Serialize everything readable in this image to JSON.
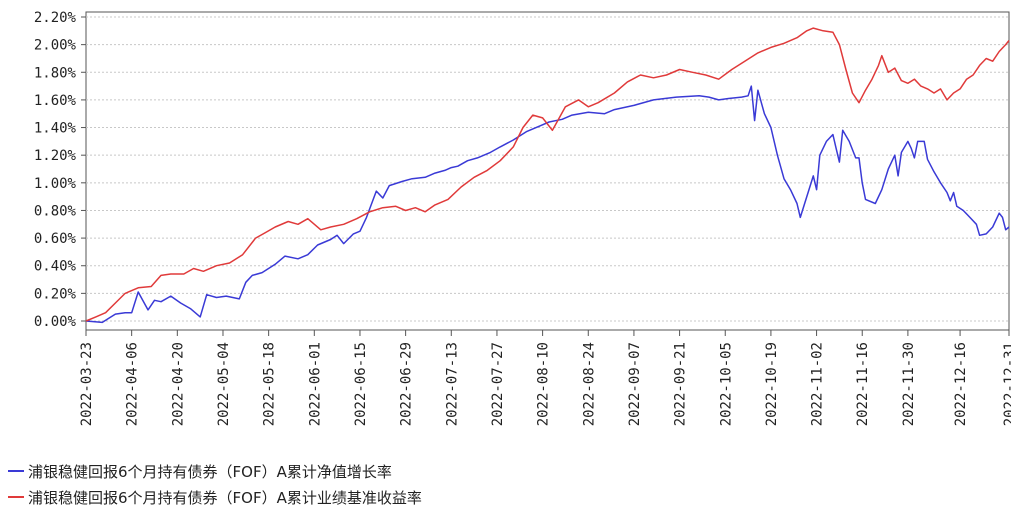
{
  "chart_data": {
    "type": "line",
    "ylim": [
      0,
      0.022
    ],
    "yticks": [
      "0.00%",
      "0.20%",
      "0.40%",
      "0.60%",
      "0.80%",
      "1.00%",
      "1.20%",
      "1.40%",
      "1.60%",
      "1.80%",
      "2.00%",
      "2.20%"
    ],
    "xticks": [
      "2022-03-23",
      "2022-04-06",
      "2022-04-20",
      "2022-05-04",
      "2022-05-18",
      "2022-06-01",
      "2022-06-15",
      "2022-06-29",
      "2022-07-13",
      "2022-07-27",
      "2022-08-10",
      "2022-08-24",
      "2022-09-07",
      "2022-09-21",
      "2022-10-05",
      "2022-10-19",
      "2022-11-02",
      "2022-11-16",
      "2022-11-30",
      "2022-12-16",
      "2022-12-31"
    ],
    "grid": true,
    "legend_position": "bottom-left",
    "series": [
      {
        "name": "浦银稳健回报6个月持有债券（FOF）A累计净值增长率",
        "color": "#3a3ad6",
        "points": [
          [
            "2022-03-23",
            0.0
          ],
          [
            "2022-03-28",
            -0.0001
          ],
          [
            "2022-03-30",
            0.0002
          ],
          [
            "2022-04-01",
            0.0005
          ],
          [
            "2022-04-04",
            0.0006
          ],
          [
            "2022-04-06",
            0.0006
          ],
          [
            "2022-04-08",
            0.0021
          ],
          [
            "2022-04-11",
            0.0008
          ],
          [
            "2022-04-13",
            0.0015
          ],
          [
            "2022-04-15",
            0.0014
          ],
          [
            "2022-04-18",
            0.0018
          ],
          [
            "2022-04-21",
            0.0013
          ],
          [
            "2022-04-24",
            0.0009
          ],
          [
            "2022-04-27",
            0.0003
          ],
          [
            "2022-04-29",
            0.0019
          ],
          [
            "2022-05-02",
            0.0017
          ],
          [
            "2022-05-05",
            0.0018
          ],
          [
            "2022-05-09",
            0.0016
          ],
          [
            "2022-05-11",
            0.0028
          ],
          [
            "2022-05-13",
            0.0033
          ],
          [
            "2022-05-16",
            0.0035
          ],
          [
            "2022-05-20",
            0.0041
          ],
          [
            "2022-05-23",
            0.0047
          ],
          [
            "2022-05-27",
            0.0045
          ],
          [
            "2022-05-30",
            0.0048
          ],
          [
            "2022-06-02",
            0.0055
          ],
          [
            "2022-06-06",
            0.0059
          ],
          [
            "2022-06-08",
            0.0062
          ],
          [
            "2022-06-10",
            0.0056
          ],
          [
            "2022-06-13",
            0.0063
          ],
          [
            "2022-06-15",
            0.0065
          ],
          [
            "2022-06-17",
            0.0075
          ],
          [
            "2022-06-20",
            0.0094
          ],
          [
            "2022-06-22",
            0.0089
          ],
          [
            "2022-06-24",
            0.0098
          ],
          [
            "2022-06-28",
            0.0101
          ],
          [
            "2022-07-01",
            0.0103
          ],
          [
            "2022-07-05",
            0.0104
          ],
          [
            "2022-07-08",
            0.0107
          ],
          [
            "2022-07-11",
            0.0109
          ],
          [
            "2022-07-13",
            0.0111
          ],
          [
            "2022-07-15",
            0.0112
          ],
          [
            "2022-07-18",
            0.0116
          ],
          [
            "2022-07-21",
            0.0118
          ],
          [
            "2022-07-25",
            0.0122
          ],
          [
            "2022-07-28",
            0.0126
          ],
          [
            "2022-08-01",
            0.0131
          ],
          [
            "2022-08-05",
            0.0137
          ],
          [
            "2022-08-09",
            0.0141
          ],
          [
            "2022-08-12",
            0.0144
          ],
          [
            "2022-08-16",
            0.0146
          ],
          [
            "2022-08-19",
            0.0149
          ],
          [
            "2022-08-24",
            0.0151
          ],
          [
            "2022-08-29",
            0.015
          ],
          [
            "2022-09-01",
            0.0153
          ],
          [
            "2022-09-07",
            0.0156
          ],
          [
            "2022-09-13",
            0.016
          ],
          [
            "2022-09-20",
            0.0162
          ],
          [
            "2022-09-27",
            0.0163
          ],
          [
            "2022-09-30",
            0.0162
          ],
          [
            "2022-10-03",
            0.016
          ],
          [
            "2022-10-06",
            0.0161
          ],
          [
            "2022-10-10",
            0.0162
          ],
          [
            "2022-10-12",
            0.0163
          ],
          [
            "2022-10-13",
            0.017
          ],
          [
            "2022-10-14",
            0.0145
          ],
          [
            "2022-10-15",
            0.0167
          ],
          [
            "2022-10-17",
            0.015
          ],
          [
            "2022-10-19",
            0.014
          ],
          [
            "2022-10-21",
            0.012
          ],
          [
            "2022-10-23",
            0.0103
          ],
          [
            "2022-10-25",
            0.0095
          ],
          [
            "2022-10-27",
            0.0085
          ],
          [
            "2022-10-28",
            0.0075
          ],
          [
            "2022-10-30",
            0.009
          ],
          [
            "2022-11-01",
            0.0105
          ],
          [
            "2022-11-02",
            0.0095
          ],
          [
            "2022-11-03",
            0.012
          ],
          [
            "2022-11-05",
            0.013
          ],
          [
            "2022-11-07",
            0.0135
          ],
          [
            "2022-11-08",
            0.0125
          ],
          [
            "2022-11-09",
            0.0115
          ],
          [
            "2022-11-10",
            0.0138
          ],
          [
            "2022-11-12",
            0.013
          ],
          [
            "2022-11-14",
            0.0118
          ],
          [
            "2022-11-15",
            0.0118
          ],
          [
            "2022-11-16",
            0.01
          ],
          [
            "2022-11-17",
            0.0088
          ],
          [
            "2022-11-20",
            0.0085
          ],
          [
            "2022-11-22",
            0.0095
          ],
          [
            "2022-11-24",
            0.011
          ],
          [
            "2022-11-26",
            0.012
          ],
          [
            "2022-11-27",
            0.0105
          ],
          [
            "2022-11-28",
            0.0122
          ],
          [
            "2022-11-30",
            0.013
          ],
          [
            "2022-12-01",
            0.0125
          ],
          [
            "2022-12-02",
            0.0118
          ],
          [
            "2022-12-03",
            0.013
          ],
          [
            "2022-12-05",
            0.013
          ],
          [
            "2022-12-06",
            0.0117
          ],
          [
            "2022-12-08",
            0.0108
          ],
          [
            "2022-12-10",
            0.01
          ],
          [
            "2022-12-12",
            0.0093
          ],
          [
            "2022-12-13",
            0.0087
          ],
          [
            "2022-12-14",
            0.0093
          ],
          [
            "2022-12-15",
            0.0083
          ],
          [
            "2022-12-17",
            0.008
          ],
          [
            "2022-12-19",
            0.0075
          ],
          [
            "2022-12-21",
            0.007
          ],
          [
            "2022-12-22",
            0.0062
          ],
          [
            "2022-12-24",
            0.0063
          ],
          [
            "2022-12-26",
            0.0068
          ],
          [
            "2022-12-28",
            0.0078
          ],
          [
            "2022-12-29",
            0.0075
          ],
          [
            "2022-12-30",
            0.0066
          ],
          [
            "2022-12-31",
            0.0068
          ]
        ]
      },
      {
        "name": "浦银稳健回报6个月持有债券（FOF）A累计业绩基准收益率",
        "color": "#e03a3a",
        "points": [
          [
            "2022-03-23",
            0.0
          ],
          [
            "2022-03-26",
            0.0003
          ],
          [
            "2022-03-29",
            0.0006
          ],
          [
            "2022-04-01",
            0.0013
          ],
          [
            "2022-04-04",
            0.002
          ],
          [
            "2022-04-08",
            0.0024
          ],
          [
            "2022-04-12",
            0.0025
          ],
          [
            "2022-04-15",
            0.0033
          ],
          [
            "2022-04-18",
            0.0034
          ],
          [
            "2022-04-22",
            0.0034
          ],
          [
            "2022-04-25",
            0.0038
          ],
          [
            "2022-04-28",
            0.0036
          ],
          [
            "2022-05-02",
            0.004
          ],
          [
            "2022-05-06",
            0.0042
          ],
          [
            "2022-05-10",
            0.0048
          ],
          [
            "2022-05-14",
            0.006
          ],
          [
            "2022-05-17",
            0.0064
          ],
          [
            "2022-05-20",
            0.0068
          ],
          [
            "2022-05-24",
            0.0072
          ],
          [
            "2022-05-27",
            0.007
          ],
          [
            "2022-05-30",
            0.0074
          ],
          [
            "2022-06-03",
            0.0066
          ],
          [
            "2022-06-06",
            0.0068
          ],
          [
            "2022-06-10",
            0.007
          ],
          [
            "2022-06-14",
            0.0074
          ],
          [
            "2022-06-18",
            0.0079
          ],
          [
            "2022-06-22",
            0.0082
          ],
          [
            "2022-06-26",
            0.0083
          ],
          [
            "2022-06-29",
            0.008
          ],
          [
            "2022-07-02",
            0.0082
          ],
          [
            "2022-07-05",
            0.0079
          ],
          [
            "2022-07-08",
            0.0084
          ],
          [
            "2022-07-12",
            0.0088
          ],
          [
            "2022-07-16",
            0.0097
          ],
          [
            "2022-07-20",
            0.0104
          ],
          [
            "2022-07-24",
            0.0109
          ],
          [
            "2022-07-28",
            0.0116
          ],
          [
            "2022-08-01",
            0.0126
          ],
          [
            "2022-08-04",
            0.014
          ],
          [
            "2022-08-07",
            0.0149
          ],
          [
            "2022-08-10",
            0.0147
          ],
          [
            "2022-08-13",
            0.0138
          ],
          [
            "2022-08-17",
            0.0155
          ],
          [
            "2022-08-21",
            0.016
          ],
          [
            "2022-08-24",
            0.0155
          ],
          [
            "2022-08-27",
            0.0158
          ],
          [
            "2022-09-01",
            0.0165
          ],
          [
            "2022-09-05",
            0.0173
          ],
          [
            "2022-09-09",
            0.0178
          ],
          [
            "2022-09-13",
            0.0176
          ],
          [
            "2022-09-17",
            0.0178
          ],
          [
            "2022-09-21",
            0.0182
          ],
          [
            "2022-09-25",
            0.018
          ],
          [
            "2022-09-29",
            0.0178
          ],
          [
            "2022-10-03",
            0.0175
          ],
          [
            "2022-10-07",
            0.0182
          ],
          [
            "2022-10-11",
            0.0188
          ],
          [
            "2022-10-15",
            0.0194
          ],
          [
            "2022-10-19",
            0.0198
          ],
          [
            "2022-10-23",
            0.0201
          ],
          [
            "2022-10-27",
            0.0205
          ],
          [
            "2022-10-30",
            0.021
          ],
          [
            "2022-11-01",
            0.0212
          ],
          [
            "2022-11-04",
            0.021
          ],
          [
            "2022-11-07",
            0.0209
          ],
          [
            "2022-11-09",
            0.02
          ],
          [
            "2022-11-11",
            0.0182
          ],
          [
            "2022-11-13",
            0.0165
          ],
          [
            "2022-11-15",
            0.0158
          ],
          [
            "2022-11-17",
            0.0167
          ],
          [
            "2022-11-19",
            0.0175
          ],
          [
            "2022-11-21",
            0.0185
          ],
          [
            "2022-11-22",
            0.0192
          ],
          [
            "2022-11-24",
            0.018
          ],
          [
            "2022-11-26",
            0.0183
          ],
          [
            "2022-11-28",
            0.0174
          ],
          [
            "2022-11-30",
            0.0172
          ],
          [
            "2022-12-02",
            0.0175
          ],
          [
            "2022-12-04",
            0.017
          ],
          [
            "2022-12-06",
            0.0168
          ],
          [
            "2022-12-08",
            0.0165
          ],
          [
            "2022-12-10",
            0.0168
          ],
          [
            "2022-12-12",
            0.016
          ],
          [
            "2022-12-14",
            0.0165
          ],
          [
            "2022-12-16",
            0.0168
          ],
          [
            "2022-12-18",
            0.0175
          ],
          [
            "2022-12-20",
            0.0178
          ],
          [
            "2022-12-22",
            0.0185
          ],
          [
            "2022-12-24",
            0.019
          ],
          [
            "2022-12-26",
            0.0188
          ],
          [
            "2022-12-28",
            0.0195
          ],
          [
            "2022-12-30",
            0.02
          ],
          [
            "2022-12-31",
            0.0203
          ]
        ]
      }
    ]
  }
}
